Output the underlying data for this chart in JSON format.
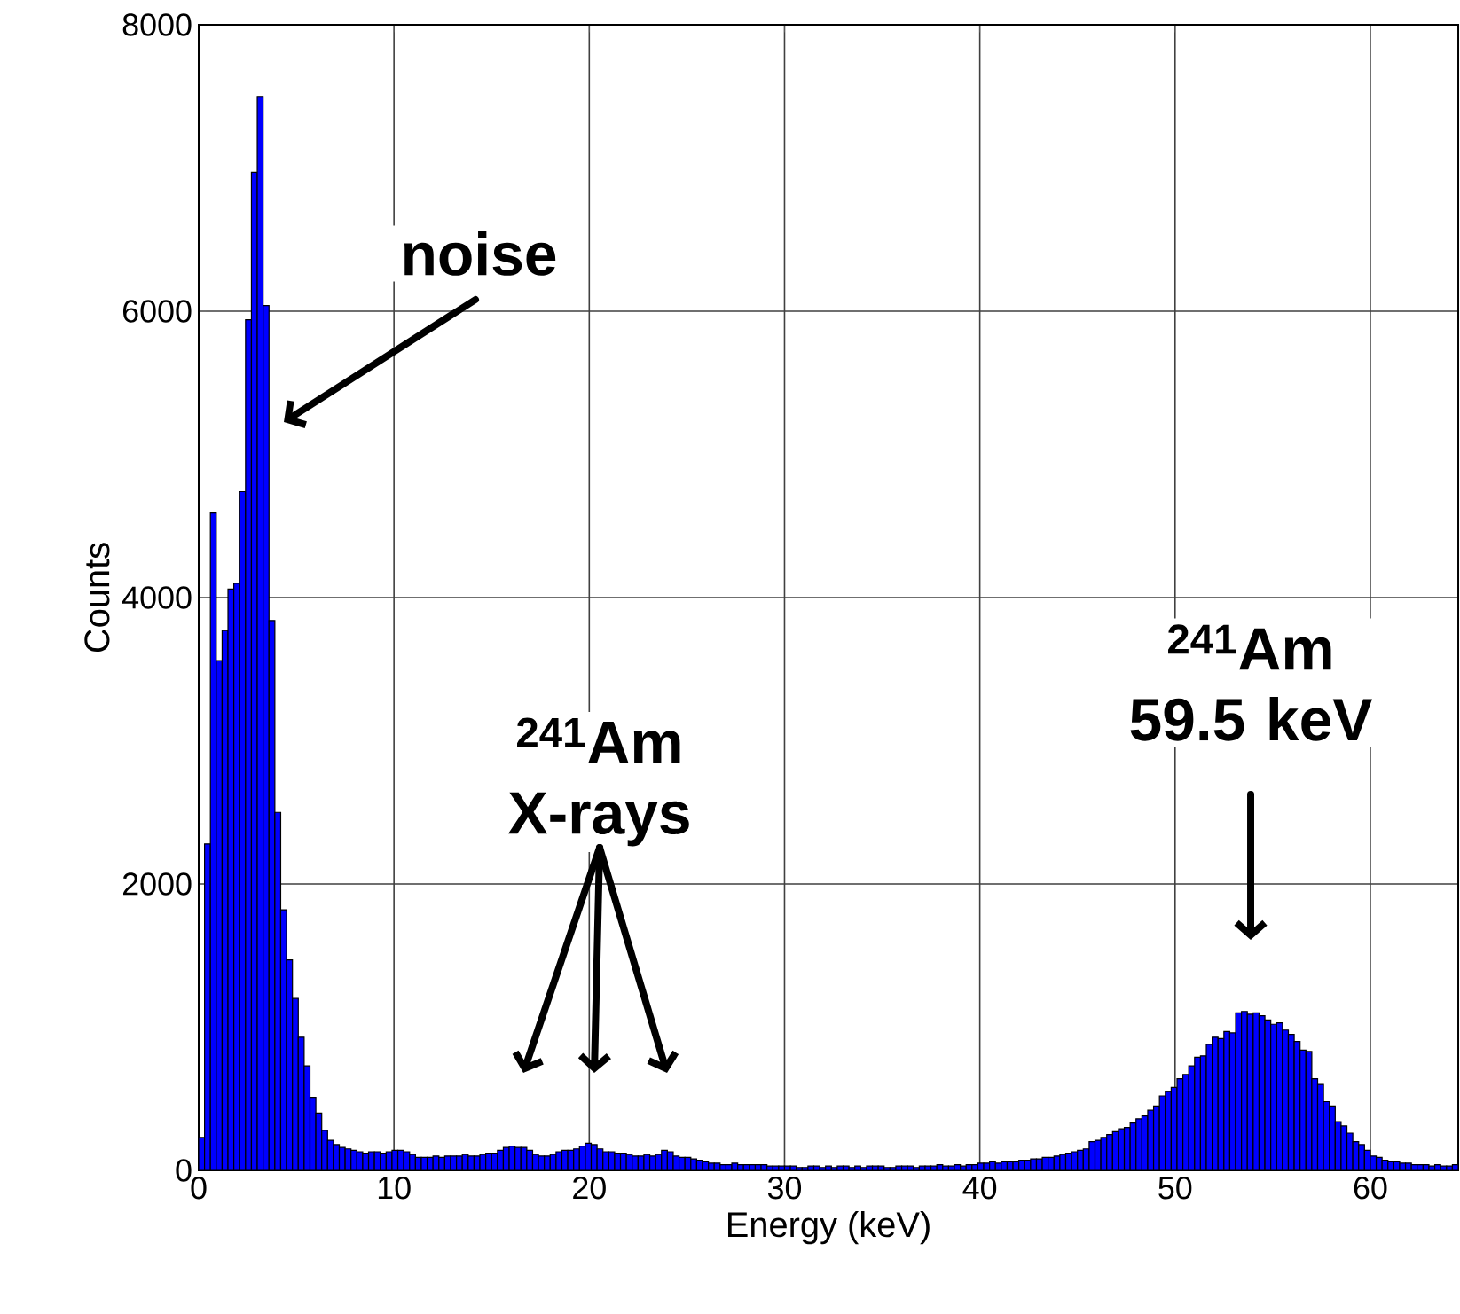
{
  "chart_data": {
    "type": "histogram",
    "xlabel": "Energy (keV)",
    "ylabel": "Counts",
    "color": "#0000ff",
    "bins": [
      0,
      0.3,
      0.6,
      0.9,
      1.2,
      1.5,
      1.8,
      2.1,
      2.4,
      2.7,
      3,
      3.3,
      3.6,
      3.9,
      4.2,
      4.5,
      4.8,
      5.1,
      5.4,
      5.7,
      6,
      6.3,
      6.6,
      6.9,
      7.2,
      7.5,
      7.8,
      8.1,
      8.4,
      8.7,
      9,
      9.3,
      9.6,
      9.9,
      10.2,
      10.5,
      10.8,
      11.1,
      11.4,
      11.7,
      12,
      12.3,
      12.6,
      12.9,
      13.2,
      13.5,
      13.8,
      14.1,
      14.4,
      14.7,
      15,
      15.3,
      15.6,
      15.9,
      16.2,
      16.5,
      16.8,
      17.1,
      17.4,
      17.7,
      18,
      18.3,
      18.6,
      18.9,
      19.2,
      19.5,
      19.8,
      20.1,
      20.4,
      20.7,
      21,
      21.3,
      21.6,
      21.9,
      22.2,
      22.5,
      22.8,
      23.1,
      23.4,
      23.7,
      24,
      24.3,
      24.6,
      24.9,
      25.2,
      25.5,
      25.8,
      26.1,
      26.4,
      26.7,
      27,
      27.3,
      27.6,
      27.9,
      28.2,
      28.5,
      28.8,
      29.1,
      29.4,
      29.7,
      30,
      30.3,
      30.6,
      30.9,
      31.2,
      31.5,
      31.8,
      32.1,
      32.4,
      32.7,
      33,
      33.3,
      33.6,
      33.9,
      34.2,
      34.5,
      34.8,
      35.1,
      35.4,
      35.7,
      36,
      36.3,
      36.6,
      36.9,
      37.2,
      37.5,
      37.8,
      38.1,
      38.4,
      38.7,
      39,
      39.3,
      39.6,
      39.9,
      40.2,
      40.5,
      40.8,
      41.1,
      41.4,
      41.7,
      42,
      42.3,
      42.6,
      42.9,
      43.2,
      43.5,
      43.8,
      44.1,
      44.4,
      44.7,
      45,
      45.3,
      45.6,
      45.9,
      46.2,
      46.5,
      46.8,
      47.1,
      47.4,
      47.7,
      48,
      48.3,
      48.6,
      48.9,
      49.2,
      49.5,
      49.8,
      50.1,
      50.4,
      50.7,
      51,
      51.3,
      51.6,
      51.9,
      52.2,
      52.5,
      52.8,
      53.1,
      53.4,
      53.7,
      54,
      54.3,
      54.6,
      54.9,
      55.2,
      55.5,
      55.8,
      56.1,
      56.4,
      56.7,
      57,
      57.3,
      57.6,
      57.9,
      58.2,
      58.5,
      58.8,
      59.1,
      59.4,
      59.7,
      60,
      60.3,
      60.6,
      60.9,
      61.2,
      61.5,
      61.8,
      62.1,
      62.4,
      62.7,
      63,
      63.3,
      63.6,
      63.9,
      64.2,
      64.5
    ],
    "values": [
      230,
      2280,
      4590,
      3560,
      3770,
      4060,
      4100,
      4740,
      5940,
      6970,
      7500,
      6040,
      3840,
      2500,
      1820,
      1470,
      1200,
      930,
      730,
      510,
      400,
      280,
      210,
      180,
      160,
      150,
      140,
      130,
      120,
      130,
      130,
      120,
      130,
      140,
      140,
      130,
      110,
      90,
      90,
      90,
      100,
      90,
      100,
      100,
      100,
      110,
      100,
      100,
      110,
      120,
      120,
      140,
      160,
      170,
      160,
      160,
      140,
      110,
      100,
      100,
      110,
      130,
      140,
      140,
      150,
      170,
      190,
      180,
      150,
      130,
      130,
      120,
      120,
      110,
      100,
      100,
      110,
      100,
      110,
      140,
      130,
      100,
      90,
      90,
      80,
      70,
      60,
      50,
      50,
      40,
      40,
      50,
      40,
      40,
      40,
      40,
      40,
      30,
      30,
      30,
      30,
      30,
      20,
      20,
      30,
      30,
      20,
      30,
      20,
      30,
      30,
      20,
      30,
      20,
      30,
      30,
      30,
      20,
      20,
      30,
      30,
      30,
      20,
      30,
      30,
      30,
      40,
      30,
      30,
      40,
      30,
      40,
      40,
      50,
      50,
      60,
      50,
      60,
      60,
      60,
      70,
      70,
      80,
      80,
      90,
      90,
      100,
      110,
      120,
      130,
      140,
      150,
      200,
      210,
      230,
      250,
      270,
      290,
      300,
      330,
      360,
      380,
      420,
      450,
      520,
      550,
      580,
      640,
      670,
      730,
      790,
      800,
      880,
      930,
      920,
      970,
      960,
      1100,
      1110,
      1090,
      1100,
      1080,
      1050,
      1020,
      1030,
      980,
      950,
      900,
      840,
      830,
      640,
      600,
      480,
      450,
      340,
      310,
      260,
      200,
      180,
      140,
      100,
      90,
      70,
      60,
      60,
      50,
      50,
      40,
      40,
      40,
      30,
      40,
      30,
      30,
      40
    ],
    "xlim": [
      0,
      64.5
    ],
    "ylim": [
      0,
      8000
    ],
    "xticks": [
      0,
      10,
      20,
      30,
      40,
      50,
      60
    ],
    "yticks": [
      0,
      2000,
      4000,
      6000,
      8000
    ],
    "grid": true,
    "annotations": [
      "noise",
      "$^{241}$Am X-rays",
      "$^{241}$Am 59.5 keV"
    ]
  }
}
